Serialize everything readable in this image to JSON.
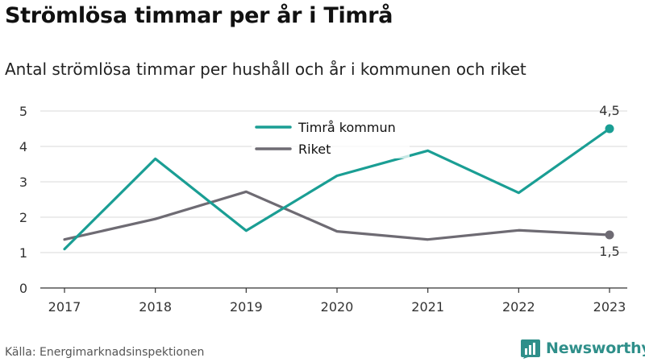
{
  "page": {
    "title": "Strömlösa timmar per år i Timrå",
    "subtitle": "Antal strömlösa timmar per hushåll och år i kommunen och riket",
    "source": "Källa: Energimarknadsinspektionen",
    "logo_text": "Newsworthy",
    "logo_icon": "newsworthy-bar-chart-icon"
  },
  "chart_data": {
    "type": "line",
    "title": "Strömlösa timmar per år i Timrå",
    "subtitle": "Antal strömlösa timmar per hushåll och år i kommunen och riket",
    "xlabel": "",
    "ylabel": "",
    "x": [
      "2017",
      "2018",
      "2019",
      "2020",
      "2021",
      "2022",
      "2023"
    ],
    "ylim": [
      0,
      5
    ],
    "yticks": [
      "0",
      "1",
      "2",
      "3",
      "4",
      "5"
    ],
    "grid": true,
    "legend_position": "top-center",
    "series": [
      {
        "name": "Timrå kommun",
        "color": "#1a9e94",
        "values": [
          1.1,
          3.65,
          1.62,
          3.17,
          3.88,
          2.69,
          4.5
        ],
        "end_label": "4,5"
      },
      {
        "name": "Riket",
        "color": "#6e6b73",
        "values": [
          1.37,
          1.95,
          2.72,
          1.6,
          1.37,
          1.63,
          1.5
        ],
        "end_label": "1,5"
      }
    ]
  }
}
